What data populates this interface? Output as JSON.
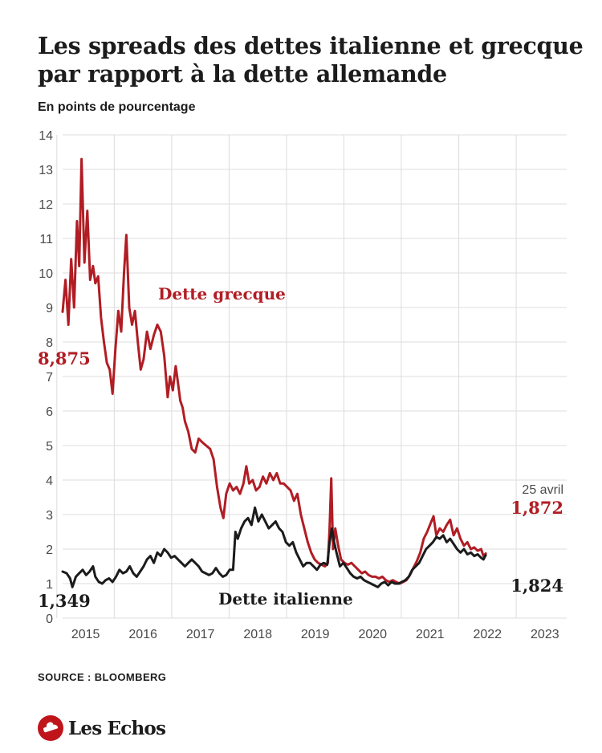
{
  "title": "Les spreads des dettes italienne et grecque par rapport à la dette allemande",
  "subtitle": "En points de pourcentage",
  "source": "SOURCE : BLOOMBERG",
  "brand": "Les Echos",
  "colors": {
    "greek": "#b11d24",
    "italian": "#1b1b1b",
    "grid": "#dcdcdc",
    "text": "#1c1c1c",
    "brand": "#c0141b"
  },
  "chart_data": {
    "type": "line",
    "x_unit": "year",
    "xlim": [
      2014.55,
      2023.33
    ],
    "ylim": [
      0,
      14
    ],
    "y_ticks": [
      0,
      1,
      2,
      3,
      4,
      5,
      6,
      7,
      8,
      9,
      10,
      11,
      12,
      13,
      14
    ],
    "x_ticks": [
      "2015",
      "2016",
      "2017",
      "2018",
      "2019",
      "2020",
      "2021",
      "2022",
      "2023"
    ],
    "grid": "vertical year lines and horizontal lines",
    "series": [
      {
        "name": "Dette grecque",
        "color": "#b11d24",
        "points": [
          [
            2014.55,
            8.875
          ],
          [
            2014.6,
            9.8
          ],
          [
            2014.65,
            8.5
          ],
          [
            2014.7,
            10.4
          ],
          [
            2014.75,
            9.0
          ],
          [
            2014.8,
            11.5
          ],
          [
            2014.84,
            10.2
          ],
          [
            2014.88,
            13.3
          ],
          [
            2014.93,
            10.3
          ],
          [
            2014.98,
            11.8
          ],
          [
            2015.03,
            9.8
          ],
          [
            2015.08,
            10.2
          ],
          [
            2015.12,
            9.7
          ],
          [
            2015.17,
            9.9
          ],
          [
            2015.22,
            8.7
          ],
          [
            2015.27,
            8.0
          ],
          [
            2015.32,
            7.4
          ],
          [
            2015.37,
            7.2
          ],
          [
            2015.42,
            6.5
          ],
          [
            2015.47,
            7.8
          ],
          [
            2015.52,
            8.9
          ],
          [
            2015.57,
            8.3
          ],
          [
            2015.62,
            10.0
          ],
          [
            2015.66,
            11.1
          ],
          [
            2015.71,
            9.0
          ],
          [
            2015.76,
            8.5
          ],
          [
            2015.81,
            8.9
          ],
          [
            2015.86,
            8.0
          ],
          [
            2015.91,
            7.2
          ],
          [
            2015.96,
            7.5
          ],
          [
            2016.02,
            8.3
          ],
          [
            2016.08,
            7.8
          ],
          [
            2016.14,
            8.2
          ],
          [
            2016.2,
            8.5
          ],
          [
            2016.26,
            8.3
          ],
          [
            2016.32,
            7.6
          ],
          [
            2016.38,
            6.4
          ],
          [
            2016.42,
            7.0
          ],
          [
            2016.47,
            6.6
          ],
          [
            2016.52,
            7.3
          ],
          [
            2016.56,
            6.8
          ],
          [
            2016.6,
            6.3
          ],
          [
            2016.64,
            6.1
          ],
          [
            2016.68,
            5.7
          ],
          [
            2016.74,
            5.4
          ],
          [
            2016.8,
            4.9
          ],
          [
            2016.86,
            4.8
          ],
          [
            2016.92,
            5.2
          ],
          [
            2016.98,
            5.1
          ],
          [
            2017.05,
            5.0
          ],
          [
            2017.12,
            4.9
          ],
          [
            2017.18,
            4.6
          ],
          [
            2017.24,
            3.8
          ],
          [
            2017.3,
            3.2
          ],
          [
            2017.35,
            2.9
          ],
          [
            2017.4,
            3.6
          ],
          [
            2017.46,
            3.9
          ],
          [
            2017.52,
            3.7
          ],
          [
            2017.58,
            3.8
          ],
          [
            2017.64,
            3.6
          ],
          [
            2017.7,
            3.9
          ],
          [
            2017.75,
            4.4
          ],
          [
            2017.8,
            3.9
          ],
          [
            2017.86,
            4.0
          ],
          [
            2017.92,
            3.7
          ],
          [
            2017.98,
            3.8
          ],
          [
            2018.04,
            4.1
          ],
          [
            2018.1,
            3.9
          ],
          [
            2018.16,
            4.2
          ],
          [
            2018.22,
            4.0
          ],
          [
            2018.28,
            4.2
          ],
          [
            2018.34,
            3.9
          ],
          [
            2018.4,
            3.9
          ],
          [
            2018.46,
            3.8
          ],
          [
            2018.52,
            3.7
          ],
          [
            2018.58,
            3.4
          ],
          [
            2018.64,
            3.6
          ],
          [
            2018.7,
            3.0
          ],
          [
            2018.76,
            2.6
          ],
          [
            2018.82,
            2.2
          ],
          [
            2018.88,
            1.9
          ],
          [
            2018.94,
            1.7
          ],
          [
            2019.0,
            1.6
          ],
          [
            2019.06,
            1.55
          ],
          [
            2019.12,
            1.5
          ],
          [
            2019.17,
            1.6
          ],
          [
            2019.2,
            2.6
          ],
          [
            2019.23,
            4.05
          ],
          [
            2019.26,
            2.0
          ],
          [
            2019.3,
            2.6
          ],
          [
            2019.35,
            2.1
          ],
          [
            2019.4,
            1.7
          ],
          [
            2019.46,
            1.6
          ],
          [
            2019.52,
            1.55
          ],
          [
            2019.58,
            1.6
          ],
          [
            2019.64,
            1.5
          ],
          [
            2019.7,
            1.4
          ],
          [
            2019.76,
            1.3
          ],
          [
            2019.82,
            1.35
          ],
          [
            2019.88,
            1.25
          ],
          [
            2019.94,
            1.2
          ],
          [
            2020.0,
            1.2
          ],
          [
            2020.06,
            1.15
          ],
          [
            2020.12,
            1.2
          ],
          [
            2020.18,
            1.1
          ],
          [
            2020.24,
            1.05
          ],
          [
            2020.3,
            1.1
          ],
          [
            2020.36,
            1.05
          ],
          [
            2020.42,
            1.0
          ],
          [
            2020.48,
            1.05
          ],
          [
            2020.54,
            1.1
          ],
          [
            2020.6,
            1.25
          ],
          [
            2020.66,
            1.45
          ],
          [
            2020.72,
            1.65
          ],
          [
            2020.78,
            1.9
          ],
          [
            2020.84,
            2.3
          ],
          [
            2020.9,
            2.5
          ],
          [
            2020.96,
            2.75
          ],
          [
            2021.01,
            2.95
          ],
          [
            2021.06,
            2.4
          ],
          [
            2021.12,
            2.6
          ],
          [
            2021.18,
            2.5
          ],
          [
            2021.24,
            2.7
          ],
          [
            2021.3,
            2.85
          ],
          [
            2021.36,
            2.4
          ],
          [
            2021.42,
            2.6
          ],
          [
            2021.48,
            2.3
          ],
          [
            2021.54,
            2.1
          ],
          [
            2021.6,
            2.2
          ],
          [
            2021.66,
            2.0
          ],
          [
            2021.72,
            2.05
          ],
          [
            2021.78,
            1.95
          ],
          [
            2021.84,
            2.0
          ],
          [
            2021.88,
            1.8
          ],
          [
            2021.92,
            1.872
          ]
        ]
      },
      {
        "name": "Dette italienne",
        "color": "#1b1b1b",
        "points": [
          [
            2014.55,
            1.349
          ],
          [
            2014.62,
            1.3
          ],
          [
            2014.68,
            1.15
          ],
          [
            2014.72,
            0.9
          ],
          [
            2014.78,
            1.2
          ],
          [
            2014.84,
            1.3
          ],
          [
            2014.9,
            1.4
          ],
          [
            2014.96,
            1.25
          ],
          [
            2015.02,
            1.35
          ],
          [
            2015.08,
            1.5
          ],
          [
            2015.12,
            1.2
          ],
          [
            2015.18,
            1.05
          ],
          [
            2015.24,
            1.0
          ],
          [
            2015.3,
            1.1
          ],
          [
            2015.36,
            1.15
          ],
          [
            2015.42,
            1.05
          ],
          [
            2015.48,
            1.2
          ],
          [
            2015.54,
            1.4
          ],
          [
            2015.6,
            1.3
          ],
          [
            2015.66,
            1.35
          ],
          [
            2015.72,
            1.5
          ],
          [
            2015.78,
            1.3
          ],
          [
            2015.84,
            1.2
          ],
          [
            2015.9,
            1.35
          ],
          [
            2015.96,
            1.5
          ],
          [
            2016.02,
            1.7
          ],
          [
            2016.08,
            1.8
          ],
          [
            2016.14,
            1.6
          ],
          [
            2016.2,
            1.9
          ],
          [
            2016.26,
            1.8
          ],
          [
            2016.32,
            2.0
          ],
          [
            2016.38,
            1.9
          ],
          [
            2016.44,
            1.75
          ],
          [
            2016.5,
            1.8
          ],
          [
            2016.56,
            1.7
          ],
          [
            2016.62,
            1.6
          ],
          [
            2016.68,
            1.5
          ],
          [
            2016.74,
            1.6
          ],
          [
            2016.8,
            1.7
          ],
          [
            2016.86,
            1.6
          ],
          [
            2016.92,
            1.5
          ],
          [
            2016.98,
            1.35
          ],
          [
            2017.04,
            1.3
          ],
          [
            2017.1,
            1.25
          ],
          [
            2017.16,
            1.3
          ],
          [
            2017.22,
            1.45
          ],
          [
            2017.28,
            1.3
          ],
          [
            2017.34,
            1.2
          ],
          [
            2017.4,
            1.25
          ],
          [
            2017.46,
            1.4
          ],
          [
            2017.52,
            1.4
          ],
          [
            2017.56,
            2.5
          ],
          [
            2017.6,
            2.3
          ],
          [
            2017.66,
            2.6
          ],
          [
            2017.72,
            2.8
          ],
          [
            2017.78,
            2.9
          ],
          [
            2017.84,
            2.7
          ],
          [
            2017.9,
            3.2
          ],
          [
            2017.96,
            2.8
          ],
          [
            2018.02,
            3.0
          ],
          [
            2018.08,
            2.8
          ],
          [
            2018.14,
            2.6
          ],
          [
            2018.2,
            2.7
          ],
          [
            2018.26,
            2.8
          ],
          [
            2018.32,
            2.6
          ],
          [
            2018.38,
            2.5
          ],
          [
            2018.44,
            2.2
          ],
          [
            2018.5,
            2.1
          ],
          [
            2018.56,
            2.2
          ],
          [
            2018.62,
            1.9
          ],
          [
            2018.68,
            1.7
          ],
          [
            2018.74,
            1.5
          ],
          [
            2018.8,
            1.6
          ],
          [
            2018.86,
            1.6
          ],
          [
            2018.92,
            1.5
          ],
          [
            2018.98,
            1.4
          ],
          [
            2019.04,
            1.55
          ],
          [
            2019.1,
            1.6
          ],
          [
            2019.16,
            1.55
          ],
          [
            2019.2,
            2.2
          ],
          [
            2019.24,
            2.6
          ],
          [
            2019.28,
            2.2
          ],
          [
            2019.32,
            1.9
          ],
          [
            2019.38,
            1.5
          ],
          [
            2019.44,
            1.6
          ],
          [
            2019.5,
            1.45
          ],
          [
            2019.56,
            1.3
          ],
          [
            2019.62,
            1.2
          ],
          [
            2019.68,
            1.15
          ],
          [
            2019.74,
            1.2
          ],
          [
            2019.8,
            1.1
          ],
          [
            2019.86,
            1.05
          ],
          [
            2019.92,
            1.0
          ],
          [
            2019.98,
            0.95
          ],
          [
            2020.04,
            0.9
          ],
          [
            2020.1,
            1.0
          ],
          [
            2020.16,
            1.05
          ],
          [
            2020.22,
            0.95
          ],
          [
            2020.28,
            1.05
          ],
          [
            2020.34,
            1.0
          ],
          [
            2020.4,
            1.0
          ],
          [
            2020.46,
            1.05
          ],
          [
            2020.52,
            1.1
          ],
          [
            2020.58,
            1.2
          ],
          [
            2020.64,
            1.4
          ],
          [
            2020.7,
            1.5
          ],
          [
            2020.76,
            1.6
          ],
          [
            2020.82,
            1.8
          ],
          [
            2020.88,
            2.0
          ],
          [
            2020.94,
            2.1
          ],
          [
            2021.0,
            2.2
          ],
          [
            2021.06,
            2.35
          ],
          [
            2021.12,
            2.3
          ],
          [
            2021.18,
            2.4
          ],
          [
            2021.24,
            2.2
          ],
          [
            2021.3,
            2.3
          ],
          [
            2021.36,
            2.15
          ],
          [
            2021.42,
            2.0
          ],
          [
            2021.48,
            1.9
          ],
          [
            2021.54,
            2.0
          ],
          [
            2021.6,
            1.85
          ],
          [
            2021.66,
            1.9
          ],
          [
            2021.72,
            1.8
          ],
          [
            2021.78,
            1.85
          ],
          [
            2021.84,
            1.75
          ],
          [
            2021.88,
            1.7
          ],
          [
            2021.92,
            1.824
          ]
        ]
      }
    ],
    "annotations": {
      "greek_label": "Dette grecque",
      "italian_label": "Dette italienne",
      "greek_start": "8,875",
      "italian_start": "1,349",
      "greek_end": "1,872",
      "italian_end": "1,824",
      "end_date": "25 avril"
    }
  }
}
